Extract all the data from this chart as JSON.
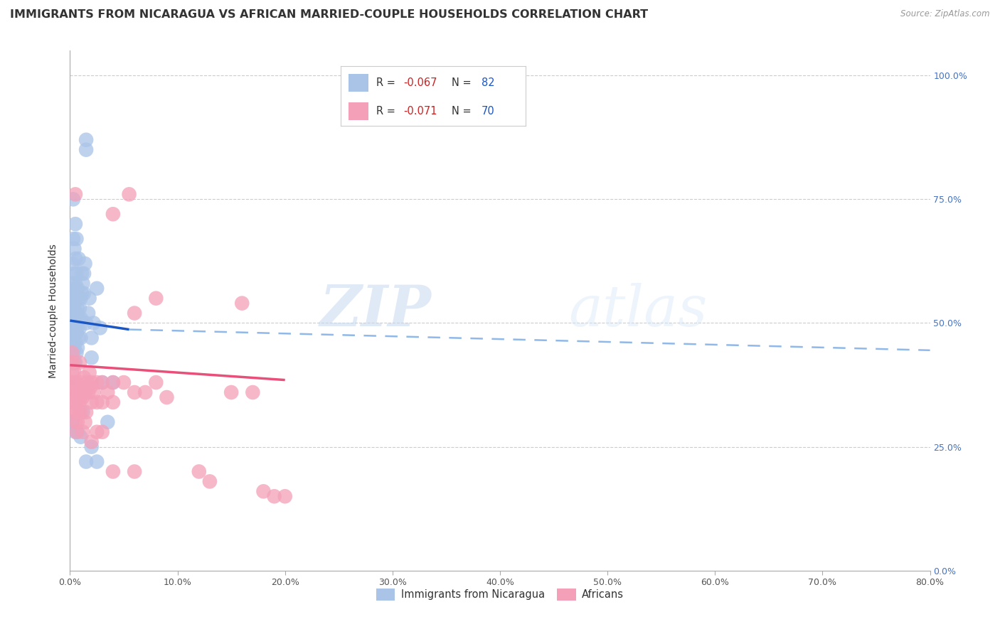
{
  "title": "IMMIGRANTS FROM NICARAGUA VS AFRICAN MARRIED-COUPLE HOUSEHOLDS CORRELATION CHART",
  "source": "Source: ZipAtlas.com",
  "blue_label": "Immigrants from Nicaragua",
  "pink_label": "Africans",
  "blue_R": -0.067,
  "blue_N": 82,
  "pink_R": -0.071,
  "pink_N": 70,
  "blue_color": "#aac4e8",
  "pink_color": "#f4a0b8",
  "blue_line_color": "#1a56c4",
  "pink_line_color": "#e8507a",
  "blue_dash_color": "#90b8e8",
  "xlim": [
    0.0,
    0.8
  ],
  "ylim": [
    0.0,
    1.05
  ],
  "blue_scatter": [
    [
      0.001,
      0.5
    ],
    [
      0.001,
      0.47
    ],
    [
      0.001,
      0.44
    ],
    [
      0.001,
      0.52
    ],
    [
      0.002,
      0.55
    ],
    [
      0.002,
      0.5
    ],
    [
      0.002,
      0.46
    ],
    [
      0.002,
      0.42
    ],
    [
      0.002,
      0.62
    ],
    [
      0.002,
      0.48
    ],
    [
      0.003,
      0.58
    ],
    [
      0.003,
      0.56
    ],
    [
      0.003,
      0.53
    ],
    [
      0.003,
      0.48
    ],
    [
      0.003,
      0.44
    ],
    [
      0.003,
      0.67
    ],
    [
      0.004,
      0.6
    ],
    [
      0.004,
      0.57
    ],
    [
      0.004,
      0.53
    ],
    [
      0.004,
      0.48
    ],
    [
      0.004,
      0.45
    ],
    [
      0.004,
      0.42
    ],
    [
      0.005,
      0.63
    ],
    [
      0.005,
      0.58
    ],
    [
      0.005,
      0.55
    ],
    [
      0.005,
      0.5
    ],
    [
      0.005,
      0.46
    ],
    [
      0.005,
      0.42
    ],
    [
      0.006,
      0.6
    ],
    [
      0.006,
      0.56
    ],
    [
      0.006,
      0.52
    ],
    [
      0.006,
      0.48
    ],
    [
      0.006,
      0.44
    ],
    [
      0.007,
      0.57
    ],
    [
      0.007,
      0.53
    ],
    [
      0.007,
      0.49
    ],
    [
      0.007,
      0.45
    ],
    [
      0.008,
      0.55
    ],
    [
      0.008,
      0.51
    ],
    [
      0.008,
      0.47
    ],
    [
      0.009,
      0.53
    ],
    [
      0.009,
      0.49
    ],
    [
      0.01,
      0.55
    ],
    [
      0.01,
      0.51
    ],
    [
      0.01,
      0.47
    ],
    [
      0.011,
      0.6
    ],
    [
      0.011,
      0.56
    ],
    [
      0.012,
      0.58
    ],
    [
      0.013,
      0.6
    ],
    [
      0.013,
      0.56
    ],
    [
      0.014,
      0.62
    ],
    [
      0.015,
      0.85
    ],
    [
      0.015,
      0.5
    ],
    [
      0.017,
      0.52
    ],
    [
      0.018,
      0.55
    ],
    [
      0.02,
      0.47
    ],
    [
      0.02,
      0.43
    ],
    [
      0.022,
      0.5
    ],
    [
      0.025,
      0.57
    ],
    [
      0.028,
      0.49
    ],
    [
      0.003,
      0.75
    ],
    [
      0.015,
      0.87
    ],
    [
      0.001,
      0.3
    ],
    [
      0.002,
      0.3
    ],
    [
      0.005,
      0.28
    ],
    [
      0.007,
      0.28
    ],
    [
      0.01,
      0.27
    ],
    [
      0.012,
      0.32
    ],
    [
      0.015,
      0.22
    ],
    [
      0.02,
      0.25
    ],
    [
      0.025,
      0.22
    ],
    [
      0.03,
      0.38
    ],
    [
      0.035,
      0.3
    ],
    [
      0.04,
      0.38
    ],
    [
      0.002,
      0.38
    ],
    [
      0.003,
      0.36
    ],
    [
      0.004,
      0.65
    ],
    [
      0.006,
      0.67
    ],
    [
      0.008,
      0.63
    ],
    [
      0.005,
      0.7
    ],
    [
      0.001,
      0.52
    ],
    [
      0.002,
      0.54
    ]
  ],
  "pink_scatter": [
    [
      0.001,
      0.42
    ],
    [
      0.001,
      0.38
    ],
    [
      0.002,
      0.44
    ],
    [
      0.002,
      0.4
    ],
    [
      0.002,
      0.36
    ],
    [
      0.003,
      0.42
    ],
    [
      0.003,
      0.38
    ],
    [
      0.003,
      0.34
    ],
    [
      0.004,
      0.4
    ],
    [
      0.004,
      0.36
    ],
    [
      0.004,
      0.32
    ],
    [
      0.005,
      0.38
    ],
    [
      0.005,
      0.34
    ],
    [
      0.005,
      0.3
    ],
    [
      0.005,
      0.76
    ],
    [
      0.006,
      0.36
    ],
    [
      0.006,
      0.32
    ],
    [
      0.006,
      0.28
    ],
    [
      0.007,
      0.34
    ],
    [
      0.007,
      0.3
    ],
    [
      0.008,
      0.36
    ],
    [
      0.008,
      0.32
    ],
    [
      0.009,
      0.34
    ],
    [
      0.009,
      0.42
    ],
    [
      0.01,
      0.36
    ],
    [
      0.01,
      0.32
    ],
    [
      0.011,
      0.38
    ],
    [
      0.012,
      0.35
    ],
    [
      0.012,
      0.28
    ],
    [
      0.013,
      0.39
    ],
    [
      0.014,
      0.36
    ],
    [
      0.014,
      0.3
    ],
    [
      0.015,
      0.37
    ],
    [
      0.015,
      0.32
    ],
    [
      0.016,
      0.38
    ],
    [
      0.017,
      0.36
    ],
    [
      0.018,
      0.4
    ],
    [
      0.019,
      0.37
    ],
    [
      0.02,
      0.38
    ],
    [
      0.02,
      0.34
    ],
    [
      0.02,
      0.26
    ],
    [
      0.022,
      0.36
    ],
    [
      0.025,
      0.38
    ],
    [
      0.025,
      0.34
    ],
    [
      0.025,
      0.28
    ],
    [
      0.03,
      0.38
    ],
    [
      0.03,
      0.34
    ],
    [
      0.03,
      0.28
    ],
    [
      0.035,
      0.36
    ],
    [
      0.04,
      0.38
    ],
    [
      0.04,
      0.34
    ],
    [
      0.04,
      0.2
    ],
    [
      0.04,
      0.72
    ],
    [
      0.05,
      0.38
    ],
    [
      0.055,
      0.76
    ],
    [
      0.06,
      0.36
    ],
    [
      0.06,
      0.52
    ],
    [
      0.06,
      0.2
    ],
    [
      0.07,
      0.36
    ],
    [
      0.08,
      0.38
    ],
    [
      0.08,
      0.55
    ],
    [
      0.09,
      0.35
    ],
    [
      0.12,
      0.2
    ],
    [
      0.13,
      0.18
    ],
    [
      0.15,
      0.36
    ],
    [
      0.16,
      0.54
    ],
    [
      0.17,
      0.36
    ],
    [
      0.18,
      0.16
    ],
    [
      0.19,
      0.15
    ],
    [
      0.2,
      0.15
    ]
  ],
  "watermark_zip": "ZIP",
  "watermark_atlas": "atlas",
  "bg_color": "#ffffff",
  "grid_color": "#cccccc",
  "title_fontsize": 11.5,
  "tick_fontsize": 9,
  "right_tick_color": "#4472c4",
  "ylabel": "Married-couple Households"
}
